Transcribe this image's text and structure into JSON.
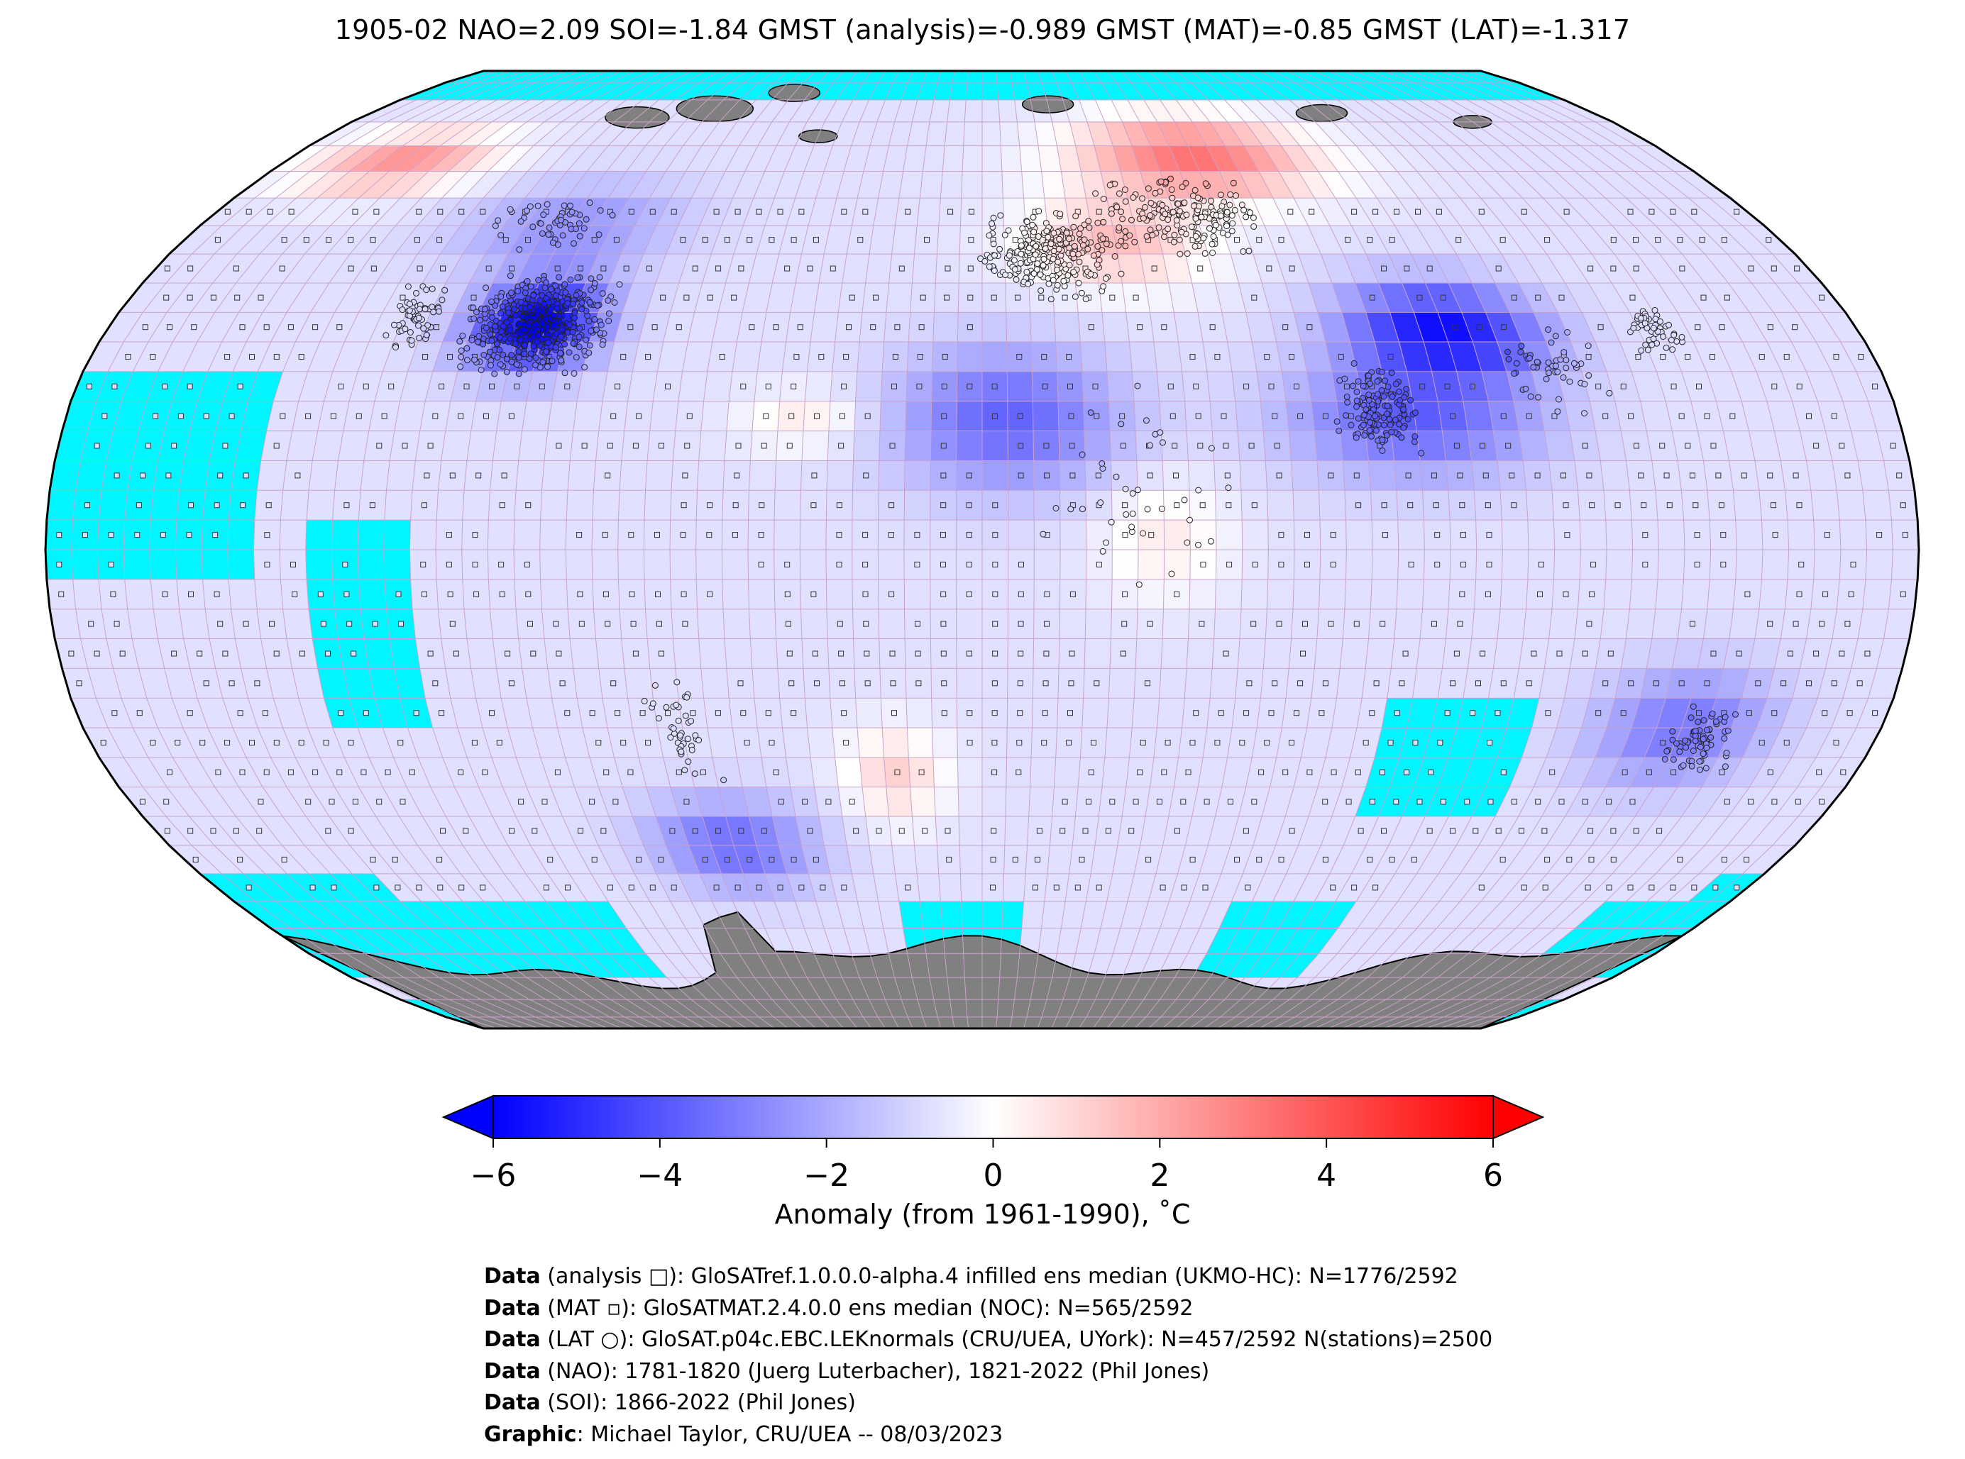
{
  "title": "1905-02 NAO=2.09 SOI=-1.84 GMST (analysis)=-0.989 GMST (MAT)=-0.85 GMST (LAT)=-1.317",
  "colors": {
    "cold_end": "#0000ff",
    "neutral": "#ffffff",
    "warm_end": "#ff0000",
    "no_data": "#00f5ff",
    "land_ice": "#808080",
    "grid": "#c9a2c9"
  },
  "colorbar": {
    "ticks": [
      "−6",
      "−4",
      "−2",
      "0",
      "2",
      "4",
      "6"
    ],
    "tick_values": [
      -6,
      -4,
      -2,
      0,
      2,
      4,
      6
    ],
    "range": [
      -6,
      6
    ],
    "extend": "both",
    "label": "Anomaly (from 1961-1990), ˚C"
  },
  "credits": [
    {
      "bold": "Data",
      "text": " (analysis □): GloSATref.1.0.0.0-alpha.4 infilled ens median (UKMO-HC): N=1776/2592"
    },
    {
      "bold": "Data",
      "text": " (MAT ▫): GloSATMAT.2.4.0.0 ens median (NOC): N=565/2592"
    },
    {
      "bold": "Data",
      "text": " (LAT ○): GloSAT.p04c.EBC.LEKnormals (CRU/UEA, UYork): N=457/2592 N(stations)=2500"
    },
    {
      "bold": "Data",
      "text": " (NAO): 1781-1820 (Juerg Luterbacher), 1821-2022 (Phil Jones)"
    },
    {
      "bold": "Data",
      "text": " (SOI): 1866-2022 (Phil Jones)"
    },
    {
      "bold": "Graphic",
      "text": ": Michael Taylor, CRU/UEA -- 08/03/2023"
    }
  ],
  "map_data": {
    "projection": "Robinson",
    "grid": "5x5 degree",
    "regions": [
      {
        "name": "central-north-america",
        "anomaly": -5.5
      },
      {
        "name": "canada-north",
        "anomaly": -1.5
      },
      {
        "name": "alaska-northwest-canada",
        "anomaly": 2.5
      },
      {
        "name": "greenland",
        "anomaly": -1.2
      },
      {
        "name": "northern-russia",
        "anomaly": 3.5
      },
      {
        "name": "eastern-europe",
        "anomaly": 1.8
      },
      {
        "name": "north-africa-sahara",
        "anomaly": -3.0
      },
      {
        "name": "central-asia-tibet",
        "anomaly": -4.8
      },
      {
        "name": "south-asia",
        "anomaly": -3.2
      },
      {
        "name": "east-africa",
        "anomaly": 1.0
      },
      {
        "name": "south-atlantic",
        "anomaly": 1.5
      },
      {
        "name": "southern-ocean-south-america",
        "anomaly": -3.0
      },
      {
        "name": "australia",
        "anomaly": -2.5
      },
      {
        "name": "tropical-pacific",
        "anomaly": -0.8
      }
    ]
  }
}
